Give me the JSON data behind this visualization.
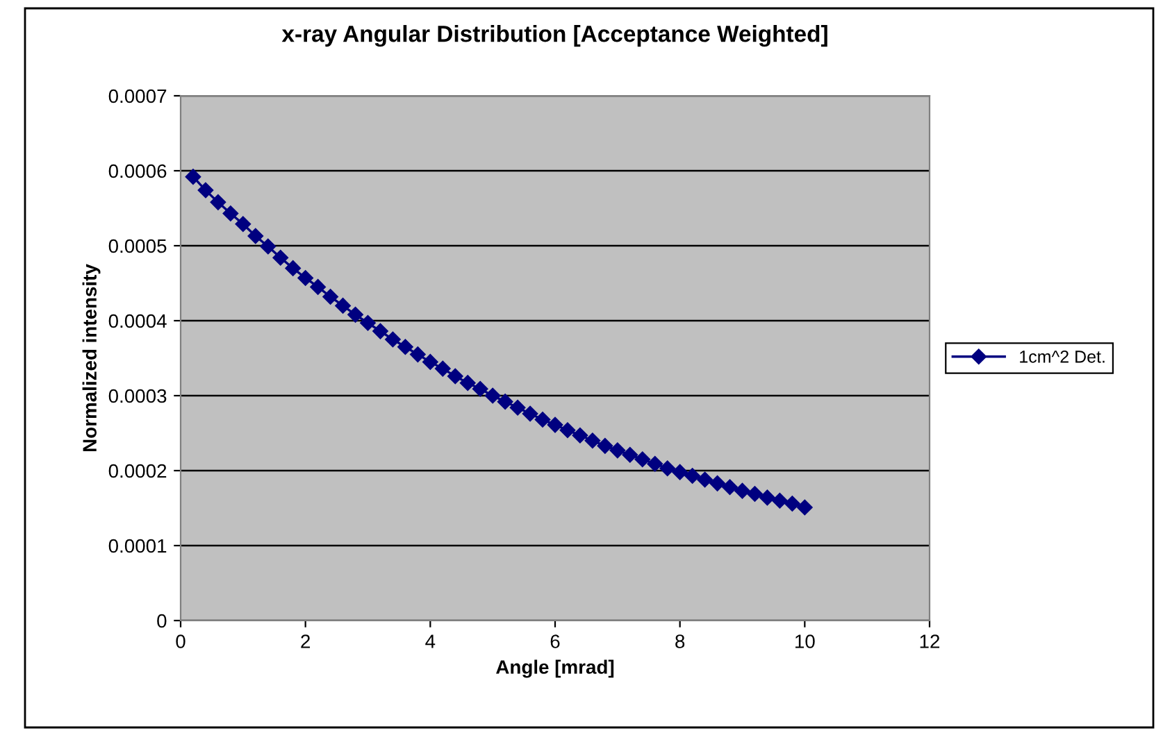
{
  "chart_data": {
    "type": "line",
    "title": "x-ray Angular Distribution [Acceptance Weighted]",
    "xlabel": "Angle [mrad]",
    "ylabel": "Normalized intensity",
    "x": [
      0.2,
      0.4,
      0.6,
      0.8,
      1.0,
      1.2,
      1.4,
      1.6,
      1.8,
      2.0,
      2.2,
      2.4,
      2.6,
      2.8,
      3.0,
      3.2,
      3.4,
      3.6,
      3.8,
      4.0,
      4.2,
      4.4,
      4.6,
      4.8,
      5.0,
      5.2,
      5.4,
      5.6,
      5.8,
      6.0,
      6.2,
      6.4,
      6.6,
      6.8,
      7.0,
      7.2,
      7.4,
      7.6,
      7.8,
      8.0,
      8.2,
      8.4,
      8.6,
      8.8,
      9.0,
      9.2,
      9.4,
      9.6,
      9.8,
      10.0
    ],
    "series": [
      {
        "name": "1cm^2 Det.",
        "color": "#000080",
        "values": [
          0.000592,
          0.000574,
          0.000558,
          0.000543,
          0.000529,
          0.000513,
          0.000499,
          0.000484,
          0.00047,
          0.000457,
          0.000445,
          0.000432,
          0.00042,
          0.000408,
          0.000397,
          0.000386,
          0.000375,
          0.000365,
          0.000355,
          0.000345,
          0.000336,
          0.000326,
          0.000317,
          0.000309,
          0.0003,
          0.000292,
          0.000284,
          0.000276,
          0.000268,
          0.000261,
          0.000254,
          0.000247,
          0.00024,
          0.000233,
          0.000227,
          0.000221,
          0.000215,
          0.000209,
          0.000203,
          0.000198,
          0.000193,
          0.000188,
          0.000183,
          0.000178,
          0.000173,
          0.000169,
          0.000164,
          0.00016,
          0.000156,
          0.000151
        ]
      }
    ],
    "xlim": [
      0,
      12
    ],
    "xticks": [
      0,
      2,
      4,
      6,
      8,
      10,
      12
    ],
    "ylim": [
      0,
      0.0007
    ],
    "yticks": [
      0,
      0.0001,
      0.0002,
      0.0003,
      0.0004,
      0.0005,
      0.0006,
      0.0007
    ],
    "grid": "y",
    "legend": "right",
    "marker": "diamond",
    "line_style": "solid"
  }
}
